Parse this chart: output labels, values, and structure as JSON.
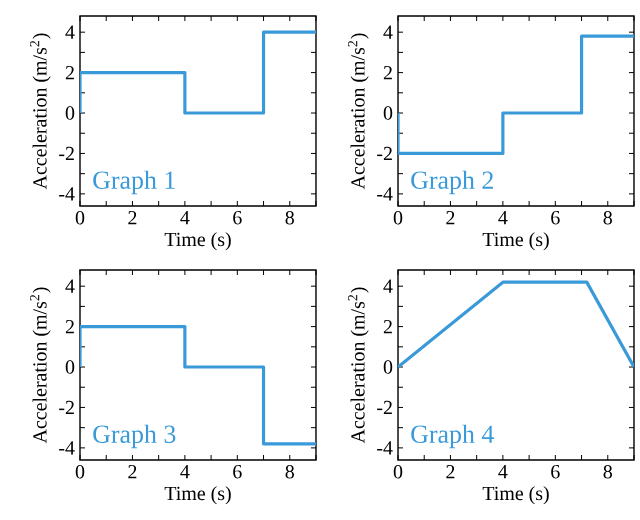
{
  "chart_data": [
    {
      "type": "line",
      "title": "Graph 1",
      "xlabel": "Time (s)",
      "ylabel": "Acceleration (m/s$^{2}$)",
      "xlim": [
        0,
        9
      ],
      "ylim": [
        -4.6,
        4.8
      ],
      "xticks": [
        0,
        {
          "value": 1,
          "label": null
        },
        2,
        {
          "value": 3,
          "label": null
        },
        4,
        {
          "value": 5,
          "label": null
        },
        6,
        {
          "value": 7,
          "label": null
        },
        8,
        {
          "value": 9,
          "label": null
        }
      ],
      "yticks": [
        -4,
        {
          "value": -3,
          "label": null
        },
        -2,
        {
          "value": -1,
          "label": null
        },
        0,
        {
          "value": 1,
          "label": null
        },
        2,
        {
          "value": 3,
          "label": null
        },
        4
      ],
      "grid": false,
      "marker": "none",
      "line_style": "solid",
      "series": [
        {
          "color": "#3a9ad9",
          "x": [
            0,
            0,
            4,
            4,
            7,
            7,
            9
          ],
          "values": [
            0,
            2,
            2,
            0,
            0,
            4,
            4
          ]
        }
      ]
    },
    {
      "type": "line",
      "title": "Graph 2",
      "xlabel": "Time (s)",
      "ylabel": "Acceleration (m/s$^{2}$)",
      "xlim": [
        0,
        9
      ],
      "ylim": [
        -4.6,
        4.8
      ],
      "xticks": [
        0,
        {
          "value": 1,
          "label": null
        },
        2,
        {
          "value": 3,
          "label": null
        },
        4,
        {
          "value": 5,
          "label": null
        },
        6,
        {
          "value": 7,
          "label": null
        },
        8,
        {
          "value": 9,
          "label": null
        }
      ],
      "yticks": [
        -4,
        {
          "value": -3,
          "label": null
        },
        -2,
        {
          "value": -1,
          "label": null
        },
        0,
        {
          "value": 1,
          "label": null
        },
        2,
        {
          "value": 3,
          "label": null
        },
        4
      ],
      "grid": false,
      "marker": "none",
      "line_style": "solid",
      "series": [
        {
          "color": "#3a9ad9",
          "x": [
            0,
            0,
            4,
            4,
            7,
            7,
            9
          ],
          "values": [
            0,
            -2,
            -2,
            0,
            0,
            3.8,
            3.8
          ]
        }
      ]
    },
    {
      "type": "line",
      "title": "Graph 3",
      "xlabel": "Time (s)",
      "ylabel": "Acceleration (m/s$^{2}$)",
      "xlim": [
        0,
        9
      ],
      "ylim": [
        -4.6,
        4.8
      ],
      "xticks": [
        0,
        {
          "value": 1,
          "label": null
        },
        2,
        {
          "value": 3,
          "label": null
        },
        4,
        {
          "value": 5,
          "label": null
        },
        6,
        {
          "value": 7,
          "label": null
        },
        8,
        {
          "value": 9,
          "label": null
        }
      ],
      "yticks": [
        -4,
        {
          "value": -3,
          "label": null
        },
        -2,
        {
          "value": -1,
          "label": null
        },
        0,
        {
          "value": 1,
          "label": null
        },
        2,
        {
          "value": 3,
          "label": null
        },
        4
      ],
      "grid": false,
      "marker": "none",
      "line_style": "solid",
      "series": [
        {
          "color": "#3a9ad9",
          "x": [
            0,
            0,
            4,
            4,
            7,
            7,
            9
          ],
          "values": [
            0,
            2,
            2,
            0,
            0,
            -3.8,
            -3.8
          ]
        }
      ]
    },
    {
      "type": "line",
      "title": "Graph 4",
      "xlabel": "Time (s)",
      "ylabel": "Acceleration (m/s$^{2}$)",
      "xlim": [
        0,
        9
      ],
      "ylim": [
        -4.6,
        4.8
      ],
      "xticks": [
        0,
        {
          "value": 1,
          "label": null
        },
        2,
        {
          "value": 3,
          "label": null
        },
        4,
        {
          "value": 5,
          "label": null
        },
        6,
        {
          "value": 7,
          "label": null
        },
        8,
        {
          "value": 9,
          "label": null
        }
      ],
      "yticks": [
        -4,
        {
          "value": -3,
          "label": null
        },
        -2,
        {
          "value": -1,
          "label": null
        },
        0,
        {
          "value": 1,
          "label": null
        },
        2,
        {
          "value": 3,
          "label": null
        },
        4
      ],
      "grid": false,
      "marker": "none",
      "line_style": "solid",
      "series": [
        {
          "color": "#3a9ad9",
          "x": [
            0,
            4,
            7.2,
            9
          ],
          "values": [
            0,
            4.2,
            4.2,
            0
          ]
        }
      ]
    }
  ]
}
